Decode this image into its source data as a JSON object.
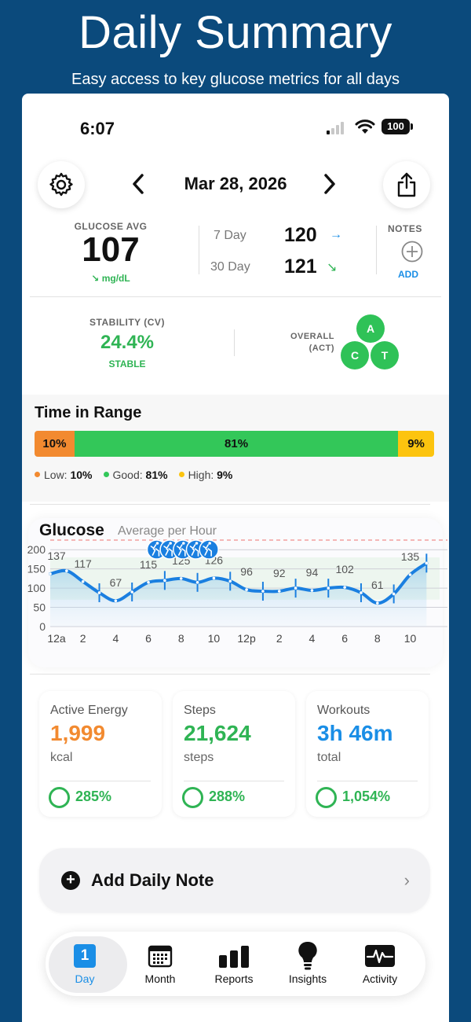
{
  "banner": {
    "title": "Daily Summary",
    "subtitle": "Easy access to key glucose metrics for all days"
  },
  "status_bar": {
    "time": "6:07",
    "battery": "100"
  },
  "header": {
    "date": "Mar 28, 2026"
  },
  "glucose_avg": {
    "label": "GLUCOSE AVG",
    "value": "107",
    "unit": "mg/dL",
    "seven_day_label": "7 Day",
    "seven_day_value": "120",
    "thirty_day_label": "30 Day",
    "thirty_day_value": "121"
  },
  "notes": {
    "label": "NOTES",
    "add_label": "ADD"
  },
  "stability": {
    "label": "STABILITY (CV)",
    "value": "24.4%",
    "status": "STABLE"
  },
  "overall": {
    "label_line1": "OVERALL",
    "label_line2": "(ACT)",
    "grades": [
      "A",
      "C",
      "T"
    ]
  },
  "time_in_range": {
    "title": "Time in Range",
    "segments": [
      {
        "name": "Low",
        "legend_label": "Low:",
        "label": "10%",
        "percent": 10,
        "color": "#f28a30"
      },
      {
        "name": "Good",
        "legend_label": "Good:",
        "label": "81%",
        "percent": 81,
        "color": "#33c759"
      },
      {
        "name": "High",
        "legend_label": "High:",
        "label": "9%",
        "percent": 9,
        "color": "#fcc40f"
      }
    ]
  },
  "glucose_chart": {
    "title": "Glucose",
    "subtitle": "Average per Hour"
  },
  "chart_data": {
    "type": "line",
    "title": "Glucose",
    "subtitle": "Average per Hour",
    "x_ticks": [
      "12a",
      "2",
      "4",
      "6",
      "8",
      "10",
      "12p",
      "2",
      "4",
      "6",
      "8",
      "10"
    ],
    "y_ticks": [
      0,
      50,
      100,
      150,
      200
    ],
    "ylim": [
      0,
      225
    ],
    "xlim": [
      0,
      23.8
    ],
    "high_threshold": 225,
    "target_range": [
      70,
      180
    ],
    "hours": [
      0,
      1,
      2,
      3,
      4,
      5,
      6,
      7,
      8,
      9,
      10,
      11,
      12,
      13,
      14,
      15,
      16,
      17,
      18,
      19,
      20,
      21,
      22,
      23
    ],
    "values": [
      137,
      145,
      117,
      88,
      67,
      90,
      115,
      120,
      125,
      115,
      126,
      118,
      96,
      92,
      92,
      100,
      94,
      100,
      102,
      88,
      61,
      85,
      135,
      165
    ],
    "data_labels": [
      {
        "hour": 0,
        "text": "137"
      },
      {
        "hour": 2,
        "text": "117"
      },
      {
        "hour": 4,
        "text": "67"
      },
      {
        "hour": 6,
        "text": "115"
      },
      {
        "hour": 8,
        "text": "125"
      },
      {
        "hour": 10,
        "text": "126"
      },
      {
        "hour": 12,
        "text": "96"
      },
      {
        "hour": 14,
        "text": "92"
      },
      {
        "hour": 16,
        "text": "94"
      },
      {
        "hour": 18,
        "text": "102"
      },
      {
        "hour": 20,
        "text": "61"
      },
      {
        "hour": 22,
        "text": "135"
      }
    ],
    "workout_hours": [
      6.5,
      7.3,
      8.1,
      8.9,
      9.7
    ],
    "grid": true
  },
  "activity": [
    {
      "title": "Active Energy",
      "value": "1,999",
      "unit": "kcal",
      "percent": "285%",
      "color": "#f28a30"
    },
    {
      "title": "Steps",
      "value": "21,624",
      "unit": "steps",
      "percent": "288%",
      "color": "#2fb454"
    },
    {
      "title": "Workouts",
      "value": "3h 46m",
      "unit": "total",
      "percent": "1,054%",
      "color": "#1a8ee6"
    }
  ],
  "daily_note": {
    "label": "Add Daily Note"
  },
  "tabbar": {
    "tabs": [
      {
        "label": "Day",
        "icon": "calendar-day-icon",
        "day_number": "1",
        "active": true
      },
      {
        "label": "Month",
        "icon": "calendar-month-icon"
      },
      {
        "label": "Reports",
        "icon": "bar-chart-icon"
      },
      {
        "label": "Insights",
        "icon": "lightbulb-icon"
      },
      {
        "label": "Activity",
        "icon": "activity-pulse-icon"
      }
    ]
  }
}
